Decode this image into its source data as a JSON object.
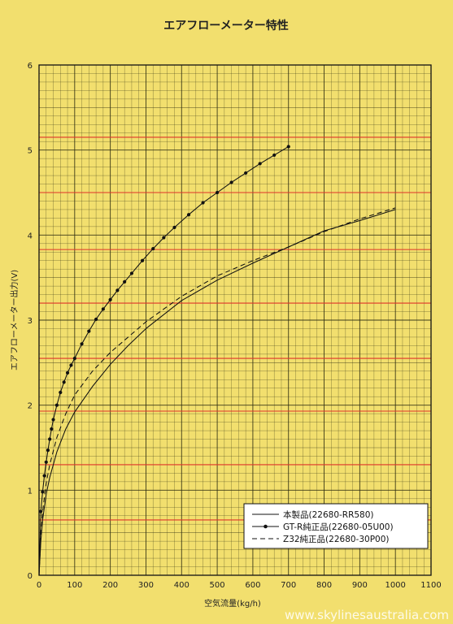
{
  "chart_data": {
    "type": "line",
    "title": "エアフローメーター特性",
    "xlabel": "空気流量(kg/h)",
    "ylabel": "エアフローメーター出力(V)",
    "xlim": [
      0,
      1100
    ],
    "ylim": [
      0,
      6
    ],
    "x_ticks": [
      "0",
      "100",
      "200",
      "300",
      "400",
      "500",
      "600",
      "700",
      "800",
      "900",
      "1000",
      "1100"
    ],
    "y_ticks": [
      "0",
      "1",
      "2",
      "3",
      "4",
      "5",
      "6"
    ],
    "grid": true,
    "legend_position": "bottom-right",
    "red_gridline_values": [
      0.65,
      1.3,
      1.93,
      2.55,
      3.2,
      3.83,
      4.5,
      5.15
    ],
    "series": [
      {
        "name": "本製品(22680-RR580)",
        "style": "solid",
        "markers": false,
        "x": [
          0,
          5,
          10,
          20,
          30,
          50,
          75,
          100,
          150,
          200,
          250,
          300,
          400,
          500,
          600,
          700,
          800,
          900,
          1000
        ],
        "y": [
          0,
          0.4,
          0.65,
          0.95,
          1.15,
          1.45,
          1.72,
          1.92,
          2.22,
          2.48,
          2.7,
          2.9,
          3.23,
          3.47,
          3.67,
          3.86,
          4.05,
          4.17,
          4.3
        ]
      },
      {
        "name": "GT-R純正品(22680-05U00)",
        "style": "solid",
        "markers": true,
        "x": [
          0,
          5,
          10,
          15,
          20,
          25,
          30,
          35,
          40,
          50,
          60,
          70,
          80,
          90,
          100,
          120,
          140,
          160,
          180,
          200,
          220,
          240,
          260,
          290,
          320,
          350,
          380,
          420,
          460,
          500,
          540,
          580,
          620,
          660,
          700
        ],
        "y": [
          0,
          0.75,
          0.98,
          1.17,
          1.33,
          1.47,
          1.6,
          1.72,
          1.83,
          2.0,
          2.15,
          2.27,
          2.38,
          2.47,
          2.55,
          2.72,
          2.87,
          3.01,
          3.13,
          3.24,
          3.35,
          3.45,
          3.55,
          3.7,
          3.84,
          3.97,
          4.09,
          4.24,
          4.38,
          4.5,
          4.62,
          4.73,
          4.84,
          4.94,
          5.04
        ]
      },
      {
        "name": "Z32純正品(22680-30P00)",
        "style": "dashed",
        "markers": false,
        "x": [
          0,
          5,
          10,
          20,
          30,
          50,
          75,
          100,
          150,
          200,
          250,
          300,
          400,
          500,
          600,
          700,
          800,
          900,
          1000
        ],
        "y": [
          0,
          0.45,
          0.75,
          1.08,
          1.3,
          1.62,
          1.9,
          2.12,
          2.4,
          2.62,
          2.8,
          2.98,
          3.28,
          3.52,
          3.7,
          3.86,
          4.04,
          4.19,
          4.32
        ]
      }
    ]
  },
  "watermark": "www.skylinesaustralia.com",
  "colors": {
    "background": "#f2df6e",
    "grid_minor": "#2a2a10",
    "grid_red": "#e0342a",
    "line": "#111111",
    "legend_bg": "#ffffff"
  }
}
